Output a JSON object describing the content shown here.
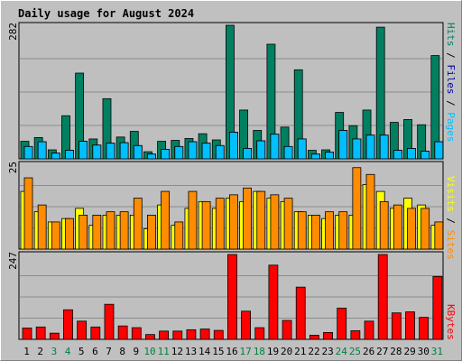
{
  "title": "Daily usage for August 2024",
  "colors": {
    "background": "#c0c0c0",
    "title": "#0000cc",
    "plot_bg": "#bfbfbf",
    "grid": "#8c8c8c",
    "weekday": "#000000",
    "weekend": "#008040",
    "pages": "#00bfff",
    "files": "#0000a0",
    "hits": "#008060",
    "sites": "#ff8c00",
    "visits": "#ffff00",
    "kbytes": "#ff0000",
    "slash": "#000000"
  },
  "labels": {
    "pages": "Pages",
    "files": "Files",
    "hits": "Hits",
    "sites": "Sites",
    "visits": "Visits",
    "kbytes": "KBytes",
    "slash": " / "
  },
  "chart_data": [
    {
      "type": "bar",
      "name": "hits-files-pages",
      "axis_max_label": "282",
      "ylim": [
        0,
        282
      ],
      "grid": true,
      "categories": [
        "1",
        "2",
        "3",
        "4",
        "5",
        "6",
        "7",
        "8",
        "9",
        "10",
        "11",
        "12",
        "13",
        "14",
        "15",
        "16",
        "17",
        "18",
        "19",
        "20",
        "21",
        "22",
        "23",
        "24",
        "25",
        "26",
        "27",
        "28",
        "29",
        "30",
        "31"
      ],
      "weekend_days": [
        3,
        4,
        10,
        11,
        17,
        18,
        24,
        25,
        31
      ],
      "series": [
        {
          "name": "Hits",
          "color_key": "hits",
          "values": [
            37,
            45,
            19,
            91,
            181,
            42,
            127,
            46,
            58,
            15,
            37,
            39,
            43,
            53,
            40,
            282,
            103,
            60,
            242,
            67,
            188,
            18,
            19,
            98,
            70,
            103,
            278,
            77,
            83,
            72,
            218
          ]
        },
        {
          "name": "Files",
          "color_key": "files",
          "values": [
            26,
            36,
            12,
            18,
            37,
            29,
            33,
            34,
            28,
            10,
            20,
            26,
            36,
            33,
            28,
            56,
            22,
            38,
            52,
            26,
            42,
            10,
            14,
            60,
            42,
            50,
            50,
            18,
            22,
            16,
            36
          ]
        },
        {
          "name": "Pages",
          "color_key": "pages",
          "values": [
            26,
            36,
            12,
            18,
            37,
            29,
            33,
            34,
            28,
            10,
            20,
            26,
            36,
            33,
            28,
            56,
            22,
            38,
            52,
            26,
            42,
            10,
            14,
            60,
            42,
            50,
            50,
            18,
            22,
            16,
            36
          ]
        }
      ]
    },
    {
      "type": "bar",
      "name": "visits-sites",
      "axis_max_label": "25",
      "ylim": [
        0,
        25
      ],
      "grid": true,
      "categories": [
        "1",
        "2",
        "3",
        "4",
        "5",
        "6",
        "7",
        "8",
        "9",
        "10",
        "11",
        "12",
        "13",
        "14",
        "15",
        "16",
        "17",
        "18",
        "19",
        "20",
        "21",
        "22",
        "23",
        "24",
        "25",
        "26",
        "27",
        "28",
        "29",
        "30",
        "31"
      ],
      "series": [
        {
          "name": "Visits",
          "color_key": "visits",
          "values": [
            17,
            11,
            8,
            9,
            12,
            7,
            10,
            10,
            10,
            6,
            13,
            7,
            12,
            14,
            12,
            15,
            14,
            17,
            15,
            14,
            11,
            10,
            9,
            10,
            10,
            19,
            17,
            12,
            15,
            13,
            7
          ]
        },
        {
          "name": "Sites",
          "color_key": "sites",
          "values": [
            21,
            13,
            8,
            9,
            10,
            10,
            11,
            11,
            15,
            10,
            17,
            8,
            17,
            14,
            15,
            16,
            18,
            17,
            16,
            15,
            11,
            10,
            11,
            11,
            24,
            22,
            14,
            13,
            12,
            12,
            8
          ]
        }
      ]
    },
    {
      "type": "bar",
      "name": "kbytes",
      "axis_max_label": "247",
      "ylim": [
        0,
        247
      ],
      "grid": true,
      "categories": [
        "1",
        "2",
        "3",
        "4",
        "5",
        "6",
        "7",
        "8",
        "9",
        "10",
        "11",
        "12",
        "13",
        "14",
        "15",
        "16",
        "17",
        "18",
        "19",
        "20",
        "21",
        "22",
        "23",
        "24",
        "25",
        "26",
        "27",
        "28",
        "29",
        "30",
        "31"
      ],
      "series": [
        {
          "name": "KBytes",
          "color_key": "kbytes",
          "values": [
            33,
            36,
            18,
            86,
            53,
            36,
            102,
            39,
            34,
            14,
            24,
            24,
            28,
            30,
            26,
            247,
            82,
            34,
            216,
            55,
            152,
            12,
            20,
            91,
            25,
            53,
            247,
            77,
            80,
            64,
            183
          ]
        }
      ]
    }
  ]
}
